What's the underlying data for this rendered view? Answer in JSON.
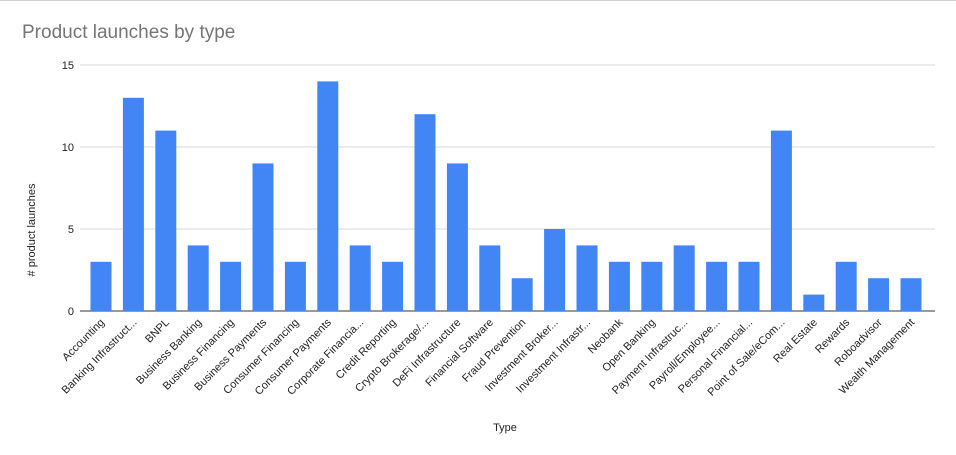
{
  "chart_data": {
    "type": "bar",
    "title": "Product launches by type",
    "xlabel": "Type",
    "ylabel": "# product launches",
    "ylim": [
      0,
      15
    ],
    "yticks": [
      0,
      5,
      10,
      15
    ],
    "grid": true,
    "bar_color": "#4285f4",
    "categories": [
      "Accounting",
      "Banking Infrastruct...",
      "BNPL",
      "Business Banking",
      "Business Financing",
      "Business Payments",
      "Consumer Financing",
      "Consumer Payments",
      "Corporate Financia...",
      "Credit Reporting",
      "Crypto Brokerage/...",
      "DeFi Infrastructure",
      "Financial Software",
      "Fraud Prevention",
      "Investment Broker...",
      "Investment Infrastr...",
      "Neobank",
      "Open Banking",
      "Payment Infrastruc...",
      "Payroll/Employee...",
      "Personal Financial...",
      "Point of Sale/eCom...",
      "Real Estate",
      "Rewards",
      "Roboadvisor",
      "Wealth Management"
    ],
    "values": [
      3,
      13,
      11,
      4,
      3,
      9,
      3,
      14,
      4,
      3,
      12,
      9,
      4,
      2,
      5,
      4,
      3,
      3,
      4,
      3,
      3,
      11,
      1,
      3,
      2,
      2
    ]
  }
}
